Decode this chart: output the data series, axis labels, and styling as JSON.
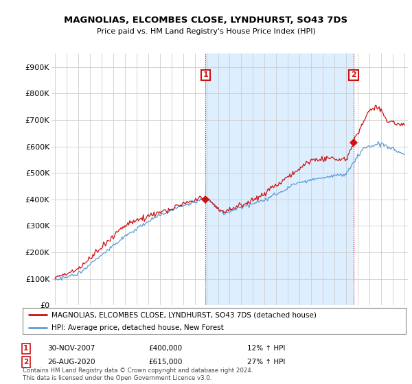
{
  "title": "MAGNOLIAS, ELCOMBES CLOSE, LYNDHURST, SO43 7DS",
  "subtitle": "Price paid vs. HM Land Registry's House Price Index (HPI)",
  "ylabel_ticks": [
    "£0",
    "£100K",
    "£200K",
    "£300K",
    "£400K",
    "£500K",
    "£600K",
    "£700K",
    "£800K",
    "£900K"
  ],
  "ytick_values": [
    0,
    100000,
    200000,
    300000,
    400000,
    500000,
    600000,
    700000,
    800000,
    900000
  ],
  "ylim": [
    0,
    950000
  ],
  "legend_line1": "MAGNOLIAS, ELCOMBES CLOSE, LYNDHURST, SO43 7DS (detached house)",
  "legend_line2": "HPI: Average price, detached house, New Forest",
  "annotation1_label": "1",
  "annotation1_date": "30-NOV-2007",
  "annotation1_price": "£400,000",
  "annotation1_hpi": "12% ↑ HPI",
  "annotation2_label": "2",
  "annotation2_date": "26-AUG-2020",
  "annotation2_price": "£615,000",
  "annotation2_hpi": "27% ↑ HPI",
  "footer": "Contains HM Land Registry data © Crown copyright and database right 2024.\nThis data is licensed under the Open Government Licence v3.0.",
  "sale1_year": 2007.92,
  "sale1_value": 400000,
  "sale2_year": 2020.65,
  "sale2_value": 615000,
  "hpi_color": "#5b9bd5",
  "price_color": "#cc1111",
  "dashed_color": "#cc1111",
  "shade_color": "#ddeeff",
  "background_color": "#ffffff",
  "grid_color": "#cccccc",
  "xlim_left": 1994.7,
  "xlim_right": 2025.3
}
